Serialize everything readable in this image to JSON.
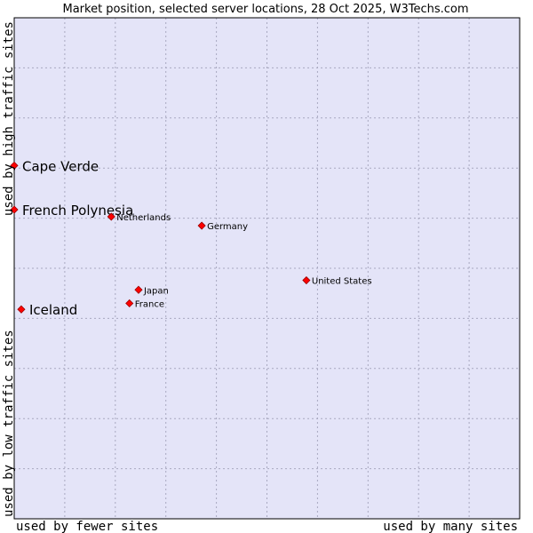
{
  "chart_data": {
    "type": "scatter",
    "title": "Market position, selected server locations, 28 Oct 2025, W3Techs.com",
    "xlabel_low": "used by fewer sites",
    "xlabel_high": "used by many sites",
    "ylabel_low": "used by low traffic sites",
    "ylabel_high": "used by high traffic sites",
    "xlim": [
      0,
      100
    ],
    "ylim": [
      0,
      100
    ],
    "grid": true,
    "colors": {
      "background": "#e4e4f8",
      "grid": "#a8a8c0",
      "point": "#ff0000",
      "point_stroke": "#990000",
      "frame": "#000000"
    },
    "points": [
      {
        "name": "Cape Verde",
        "x": 0.0,
        "y": 70.5,
        "emphasis": true
      },
      {
        "name": "French Polynesia",
        "x": 0.0,
        "y": 61.7,
        "emphasis": true
      },
      {
        "name": "Iceland",
        "x": 1.4,
        "y": 41.8,
        "emphasis": true
      },
      {
        "name": "Netherlands",
        "x": 19.2,
        "y": 60.3,
        "emphasis": false
      },
      {
        "name": "Germany",
        "x": 37.1,
        "y": 58.5,
        "emphasis": false
      },
      {
        "name": "United States",
        "x": 57.8,
        "y": 47.6,
        "emphasis": false
      },
      {
        "name": "Japan",
        "x": 24.6,
        "y": 45.7,
        "emphasis": false
      },
      {
        "name": "France",
        "x": 22.8,
        "y": 43.0,
        "emphasis": false
      }
    ]
  }
}
